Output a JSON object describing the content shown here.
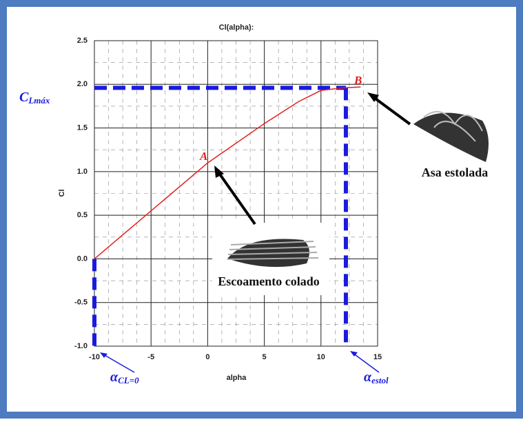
{
  "chart_data": {
    "type": "line",
    "title": "Cl(alpha):",
    "x_label": "alpha",
    "y_label": "Cl",
    "x": [
      -10,
      -5,
      0,
      5,
      8,
      10,
      12,
      13.5
    ],
    "series": [
      {
        "name": "Cl",
        "color": "#e0201c",
        "values": [
          0,
          0.55,
          1.1,
          1.55,
          1.8,
          1.93,
          1.96,
          1.97
        ]
      }
    ],
    "xlim": [
      -10,
      15
    ],
    "xticks": [
      -10,
      -5,
      0,
      5,
      10,
      15
    ],
    "ylim": [
      -1,
      2.5
    ],
    "yticks": [
      {
        "value": -1,
        "label": "-1.0"
      },
      -0.5,
      {
        "value": 0,
        "label": "0.0"
      },
      0.5,
      {
        "value": 1,
        "label": "1.0"
      },
      1.5,
      {
        "value": 2,
        "label": "2.0"
      },
      2.5
    ],
    "grid": true,
    "reference_lines": {
      "color": "#1a1ae0",
      "cl_max": 1.96,
      "alpha_cl0": -10,
      "alpha_stall": 12.2
    },
    "annotations": {
      "cl_max": {
        "main": "C",
        "sub": "Lmáx"
      },
      "alpha_cl0": {
        "main": "α",
        "sub": "CL=0"
      },
      "alpha_stall": {
        "main": "α",
        "sub": "estol"
      },
      "point_a": "A",
      "point_b": "B",
      "stalled_wing": "Asa estolada",
      "attached_flow": "Escoamento colado"
    }
  }
}
